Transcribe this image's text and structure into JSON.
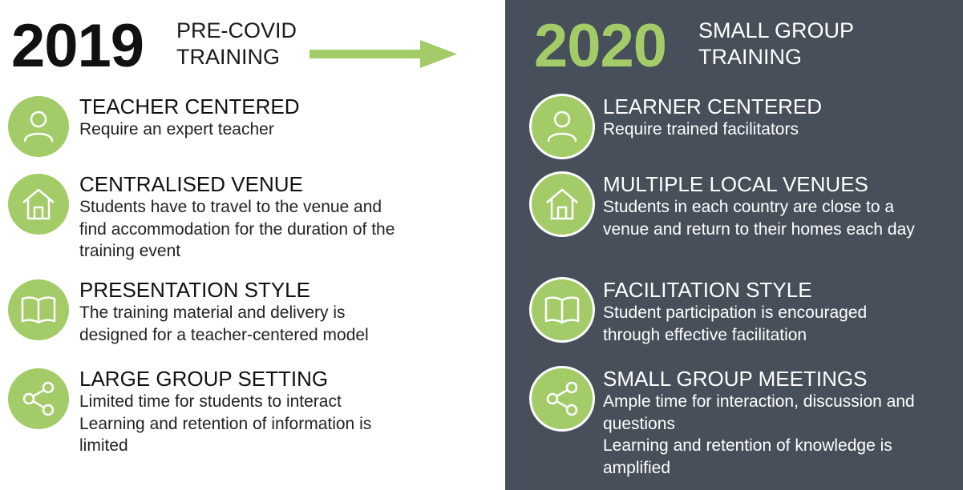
{
  "left": {
    "year": "2019",
    "subtitle": "PRE-COVID\nTRAINING",
    "items": [
      {
        "icon": "person-icon",
        "title": "TEACHER CENTERED",
        "lines": [
          "Require an expert teacher"
        ]
      },
      {
        "icon": "house-icon",
        "title": "CENTRALISED VENUE",
        "lines": [
          "Students have to travel to the venue and",
          "find accommodation for the duration of the",
          "training event"
        ]
      },
      {
        "icon": "book-icon",
        "title": "PRESENTATION STYLE",
        "lines": [
          "The training material and delivery is",
          "designed for a teacher-centered model"
        ]
      },
      {
        "icon": "share-icon",
        "title": "LARGE GROUP SETTING",
        "lines": [
          "Limited time for students to interact",
          "Learning and retention of information is",
          "limited"
        ]
      }
    ]
  },
  "right": {
    "year": "2020",
    "subtitle": "SMALL GROUP\nTRAINING",
    "items": [
      {
        "icon": "person-icon",
        "title": "LEARNER CENTERED",
        "lines": [
          "Require trained facilitators"
        ]
      },
      {
        "icon": "house-icon",
        "title": "MULTIPLE LOCAL VENUES",
        "lines": [
          "Students in each country are close to a",
          "venue and return to their homes each day"
        ]
      },
      {
        "icon": "book-icon",
        "title": "FACILITATION STYLE",
        "lines": [
          "Student participation is encouraged",
          "through effective facilitation"
        ]
      },
      {
        "icon": "share-icon",
        "title": "SMALL GROUP MEETINGS",
        "lines": [
          "Ample time for interaction, discussion and",
          "questions",
          "Learning and retention of knowledge is",
          "amplified"
        ]
      }
    ]
  },
  "colors": {
    "accent_green": "#a3cc68",
    "dark_panel": "#464f5a",
    "text_dark": "#111111",
    "text_light": "#ffffff"
  }
}
